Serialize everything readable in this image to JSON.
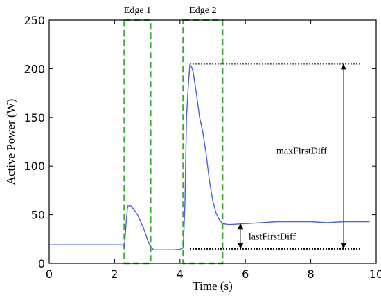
{
  "chart_data": {
    "type": "line",
    "xlabel": "Time (s)",
    "ylabel": "Active Power (W)",
    "xlim": [
      0,
      10
    ],
    "ylim": [
      0,
      250
    ],
    "xticks": [
      0,
      2,
      4,
      6,
      8,
      10
    ],
    "yticks": [
      0,
      50,
      100,
      150,
      200,
      250
    ],
    "grid": false,
    "line_color": "#4a5ee6",
    "box_color": "#3aaa35",
    "series": [
      {
        "x": [
          0,
          1,
          2.25,
          2.3,
          2.35,
          2.4,
          2.5,
          2.6,
          2.7,
          2.8,
          2.9,
          3.0,
          3.1,
          3.2,
          3.4,
          3.6,
          3.8,
          4.0,
          4.1,
          4.15,
          4.2,
          4.25,
          4.3,
          4.35,
          4.4,
          4.5,
          4.6,
          4.7,
          4.8,
          4.9,
          5.0,
          5.1,
          5.2,
          5.3,
          5.5,
          6.0,
          6.5,
          7.0,
          7.5,
          8.0,
          8.5,
          9.0,
          9.5,
          9.8
        ],
        "y": [
          19,
          19,
          19,
          17,
          40,
          59,
          59,
          55,
          50,
          43,
          35,
          25,
          17,
          14,
          14,
          14,
          14,
          14.5,
          16,
          60,
          150,
          180,
          204,
          202,
          197,
          175,
          150,
          135,
          112,
          85,
          65,
          52,
          45,
          41,
          40,
          41,
          42,
          43,
          43,
          43,
          42,
          43,
          43,
          43
        ]
      }
    ],
    "edge_boxes": [
      {
        "label": "Edge 1",
        "x0": 2.3,
        "x1": 3.1,
        "y0": 0,
        "y1": 250
      },
      {
        "label": "Edge 2",
        "x0": 4.1,
        "x1": 5.3,
        "y0": 0,
        "y1": 250
      }
    ],
    "reference_lines": [
      {
        "y": 205,
        "x0": 4.3,
        "x1": 9.5
      },
      {
        "y": 15,
        "x0": 4.3,
        "x1": 9.5
      }
    ],
    "annotations": [
      {
        "label": "maxFirstDiff",
        "arrow_x": 9.0,
        "y0": 15,
        "y1": 205,
        "text_x": 6.95,
        "text_y": 116
      },
      {
        "label": "lastFirstDiff",
        "arrow_x": 5.85,
        "y0": 15,
        "y1": 41,
        "text_x": 6.1,
        "text_y": 28
      }
    ]
  }
}
